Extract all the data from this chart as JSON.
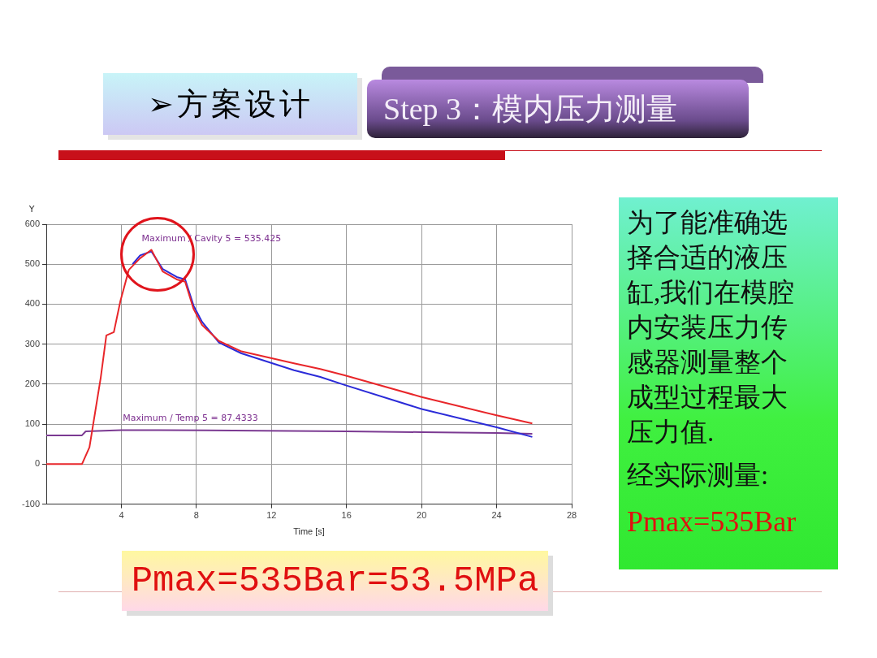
{
  "chart_data": {
    "type": "line",
    "title": "➢方案设计",
    "subtitle": "Step 3：模内压力测量",
    "xlabel": "Time [s]",
    "ylabel": "Y",
    "xlim": [
      0,
      28
    ],
    "xticks": [
      4,
      8,
      12,
      16,
      20,
      24,
      28
    ],
    "ylim": [
      -100,
      600
    ],
    "yticks": [
      -100,
      0,
      100,
      200,
      300,
      400,
      500,
      600
    ],
    "grid": true,
    "legend": false,
    "marker": "none",
    "line_style": "solid",
    "series": [
      {
        "color": "#e8262a",
        "x": [
          0,
          1.9,
          2.3,
          2.9,
          3.2,
          3.6,
          3.95,
          4.4,
          5.0,
          5.6,
          6.2,
          6.95,
          7.4,
          7.85,
          8.3,
          9.2,
          10.4,
          13.2,
          14.6,
          15.9,
          20,
          24,
          25.9
        ],
        "values": [
          0,
          0,
          42,
          216,
          322,
          330,
          408,
          486,
          515,
          536,
          482,
          462,
          456,
          388,
          348,
          308,
          282,
          252,
          238,
          222,
          168,
          122,
          102
        ]
      },
      {
        "color": "#2b2bd8",
        "x": [
          4.6,
          5.0,
          5.6,
          6.2,
          6.95,
          7.4,
          7.85,
          8.3,
          9.2,
          10.4,
          13.2,
          14.6,
          15.9,
          20,
          24,
          25.9
        ],
        "values": [
          500,
          522,
          532,
          488,
          468,
          462,
          396,
          356,
          304,
          277,
          235,
          218,
          198,
          138,
          92,
          68
        ]
      },
      {
        "color": "#7b3a92",
        "x": [
          0,
          1.9,
          2.1,
          4,
          6,
          10,
          16,
          20,
          24,
          25.9
        ],
        "values": [
          72,
          72,
          82,
          85,
          85,
          84,
          82,
          80,
          78,
          76
        ]
      }
    ],
    "annotations": [
      {
        "text": "Maximum / Cavity 5 = 535.425",
        "x": 5.6,
        "y": 536
      },
      {
        "text": "Maximum / Temp 5 = 87.4333",
        "x": 4.6,
        "y": 87
      },
      "为了能准确选择合适的液压缸,我们在模腔内安装压力传感器测量整个成型过程最大压力值.",
      "经实际测量:",
      "Pmax=535Bar",
      "Pmax=535Bar=53.5MPa"
    ]
  }
}
